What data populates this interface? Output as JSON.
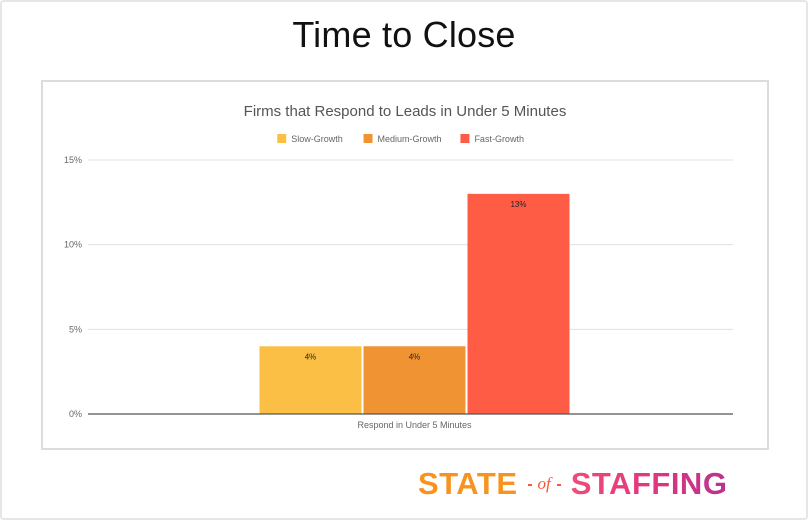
{
  "slide": {
    "title": "Time to Close"
  },
  "brand": {
    "word1": "STATE",
    "connector": "of",
    "word2": "STAFFING"
  },
  "colors": {
    "slow_growth": "#fcbf45",
    "medium_growth": "#f09333",
    "fast_growth": "#ff5c45",
    "gridline": "#e0e0e0",
    "baseline": "#555555"
  },
  "chart_data": {
    "type": "bar",
    "title": "Firms that Respond to Leads in Under 5 Minutes",
    "categories": [
      "Respond in Under 5 Minutes"
    ],
    "series": [
      {
        "name": "Slow-Growth",
        "values": [
          4
        ],
        "labels": [
          "4%"
        ],
        "color": "#fcbf45"
      },
      {
        "name": "Medium-Growth",
        "values": [
          4
        ],
        "labels": [
          "4%"
        ],
        "color": "#f09333"
      },
      {
        "name": "Fast-Growth",
        "values": [
          13
        ],
        "labels": [
          "13%"
        ],
        "color": "#ff5c45"
      }
    ],
    "ylim": [
      0,
      15
    ],
    "yticks": [
      0,
      5,
      10,
      15
    ],
    "ytick_labels": [
      "0%",
      "5%",
      "10%",
      "15%"
    ],
    "xlabel": "",
    "ylabel": "",
    "grid": true,
    "legend_position": "top-center"
  }
}
